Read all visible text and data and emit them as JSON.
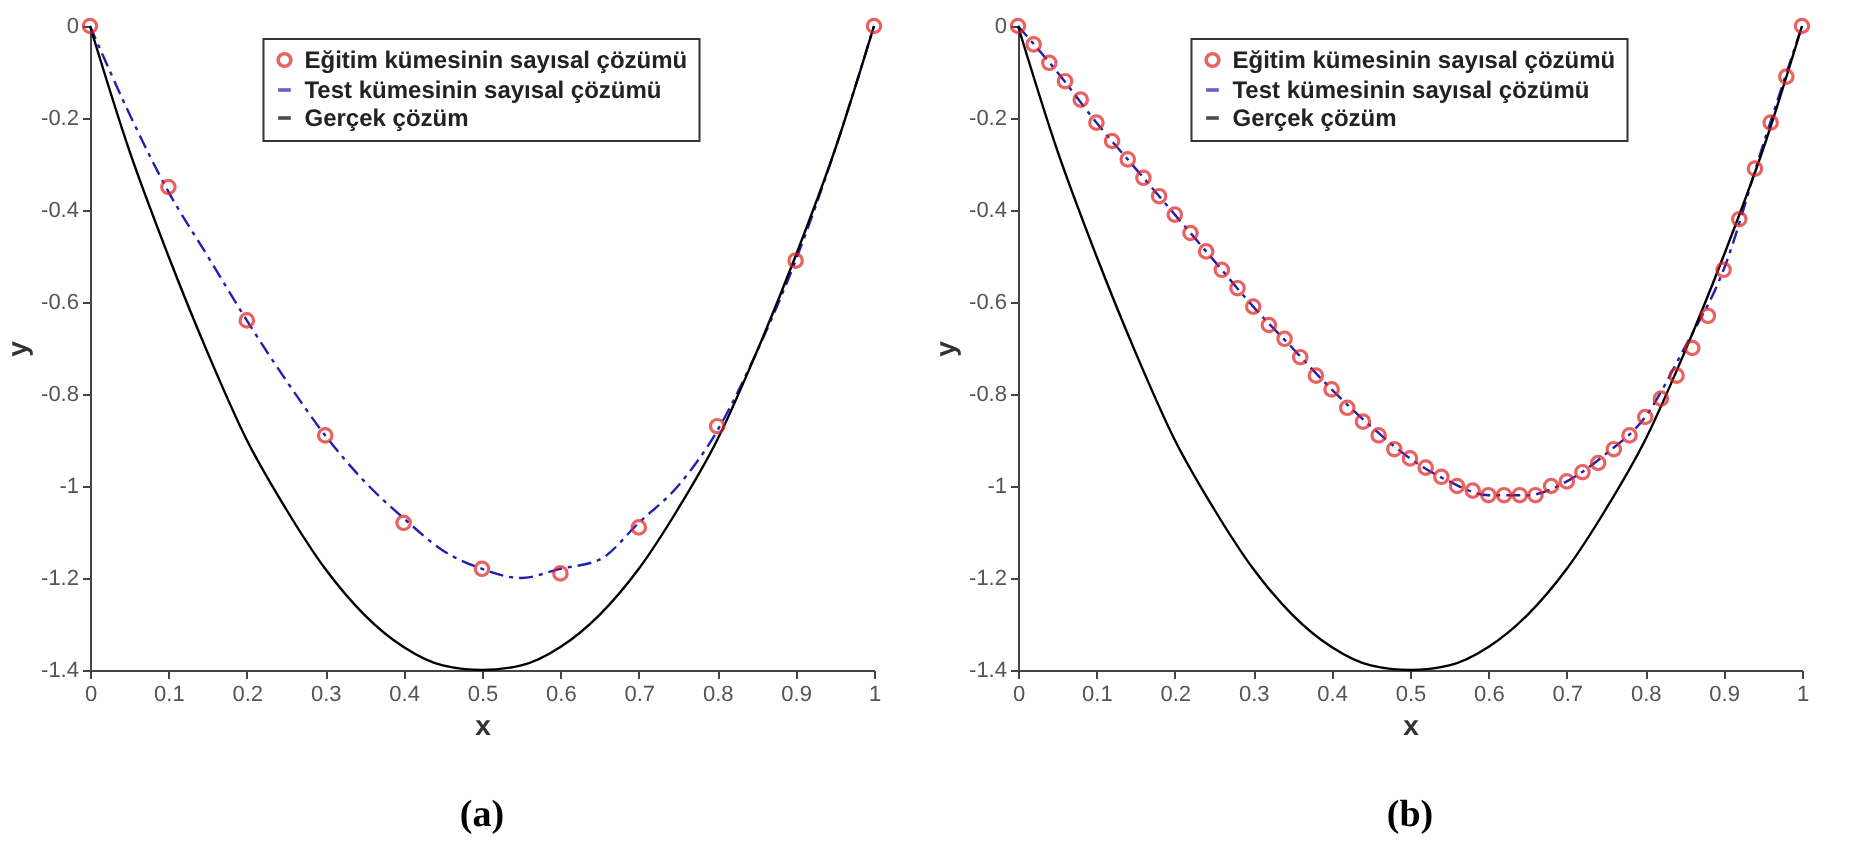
{
  "chart_data": [
    {
      "type": "line",
      "title": "(a)",
      "xlabel": "x",
      "ylabel": "y",
      "xlim": [
        0,
        1
      ],
      "ylim": [
        -1.4,
        0
      ],
      "xticks": [
        0,
        0.1,
        0.2,
        0.3,
        0.4,
        0.5,
        0.6,
        0.7,
        0.8,
        0.9,
        1
      ],
      "yticks": [
        -1.4,
        -1.2,
        -1,
        -0.8,
        -0.6,
        -0.4,
        -0.2,
        0
      ],
      "grid": false,
      "legend": "top",
      "series": [
        {
          "name": "Eğitim kümesinin sayısal çözümü",
          "type": "scatter",
          "marker": "circle",
          "color": "#e02020",
          "x": [
            0,
            0.1,
            0.2,
            0.3,
            0.4,
            0.5,
            0.6,
            0.7,
            0.8,
            0.9,
            1
          ],
          "values": [
            0,
            -0.35,
            -0.64,
            -0.89,
            -1.08,
            -1.18,
            -1.19,
            -1.09,
            -0.87,
            -0.51,
            0
          ]
        },
        {
          "name": "Test kümesinin sayısal çözümü",
          "type": "line",
          "line_style": "dashed",
          "color": "#2020b0",
          "x": [
            0,
            0.05,
            0.1,
            0.15,
            0.2,
            0.25,
            0.3,
            0.35,
            0.4,
            0.45,
            0.5,
            0.55,
            0.6,
            0.65,
            0.7,
            0.75,
            0.8,
            0.85,
            0.9,
            0.95,
            1
          ],
          "values": [
            0,
            -0.19,
            -0.36,
            -0.5,
            -0.64,
            -0.77,
            -0.89,
            -0.99,
            -1.07,
            -1.14,
            -1.18,
            -1.2,
            -1.18,
            -1.16,
            -1.08,
            -1.0,
            -0.88,
            -0.71,
            -0.51,
            -0.27,
            0
          ]
        },
        {
          "name": "Gerçek çözüm",
          "type": "line",
          "line_style": "solid",
          "color": "#000000",
          "x": [
            0,
            0.05,
            0.1,
            0.15,
            0.2,
            0.25,
            0.3,
            0.35,
            0.4,
            0.45,
            0.5,
            0.55,
            0.6,
            0.65,
            0.7,
            0.75,
            0.8,
            0.85,
            0.9,
            0.95,
            1
          ],
          "values": [
            0,
            -0.27,
            -0.5,
            -0.71,
            -0.9,
            -1.05,
            -1.18,
            -1.28,
            -1.35,
            -1.39,
            -1.4,
            -1.39,
            -1.35,
            -1.28,
            -1.18,
            -1.05,
            -0.9,
            -0.71,
            -0.5,
            -0.27,
            0
          ]
        }
      ]
    },
    {
      "type": "line",
      "title": "(b)",
      "xlabel": "x",
      "ylabel": "y",
      "xlim": [
        0,
        1
      ],
      "ylim": [
        -1.4,
        0
      ],
      "xticks": [
        0,
        0.1,
        0.2,
        0.3,
        0.4,
        0.5,
        0.6,
        0.7,
        0.8,
        0.9,
        1
      ],
      "yticks": [
        -1.4,
        -1.2,
        -1,
        -0.8,
        -0.6,
        -0.4,
        -0.2,
        0
      ],
      "grid": false,
      "legend": "top",
      "series": [
        {
          "name": "Eğitim kümesinin sayısal çözümü",
          "type": "scatter",
          "marker": "circle",
          "color": "#e02020",
          "x": [
            0,
            0.02,
            0.04,
            0.06,
            0.08,
            0.1,
            0.12,
            0.14,
            0.16,
            0.18,
            0.2,
            0.22,
            0.24,
            0.26,
            0.28,
            0.3,
            0.32,
            0.34,
            0.36,
            0.38,
            0.4,
            0.42,
            0.44,
            0.46,
            0.48,
            0.5,
            0.52,
            0.54,
            0.56,
            0.58,
            0.6,
            0.62,
            0.64,
            0.66,
            0.68,
            0.7,
            0.72,
            0.74,
            0.76,
            0.78,
            0.8,
            0.82,
            0.84,
            0.86,
            0.88,
            0.9,
            0.92,
            0.94,
            0.96,
            0.98,
            1
          ],
          "values": [
            0,
            -0.04,
            -0.08,
            -0.12,
            -0.16,
            -0.21,
            -0.25,
            -0.29,
            -0.33,
            -0.37,
            -0.41,
            -0.45,
            -0.49,
            -0.53,
            -0.57,
            -0.61,
            -0.65,
            -0.68,
            -0.72,
            -0.76,
            -0.79,
            -0.83,
            -0.86,
            -0.89,
            -0.92,
            -0.94,
            -0.96,
            -0.98,
            -1.0,
            -1.01,
            -1.02,
            -1.02,
            -1.02,
            -1.02,
            -1.0,
            -0.99,
            -0.97,
            -0.95,
            -0.92,
            -0.89,
            -0.85,
            -0.81,
            -0.76,
            -0.7,
            -0.63,
            -0.53,
            -0.42,
            -0.31,
            -0.21,
            -0.11,
            0
          ]
        },
        {
          "name": "Test kümesinin sayısal çözümü",
          "type": "line",
          "line_style": "dashed",
          "color": "#2020b0",
          "x": [
            0,
            0.05,
            0.1,
            0.15,
            0.2,
            0.25,
            0.3,
            0.35,
            0.4,
            0.45,
            0.5,
            0.55,
            0.6,
            0.65,
            0.7,
            0.75,
            0.8,
            0.85,
            0.9,
            0.95,
            1
          ],
          "values": [
            0,
            -0.1,
            -0.21,
            -0.31,
            -0.41,
            -0.51,
            -0.61,
            -0.7,
            -0.79,
            -0.87,
            -0.94,
            -0.99,
            -1.02,
            -1.02,
            -0.99,
            -0.93,
            -0.85,
            -0.7,
            -0.53,
            -0.26,
            0
          ]
        },
        {
          "name": "Gerçek çözüm",
          "type": "line",
          "line_style": "solid",
          "color": "#000000",
          "x": [
            0,
            0.05,
            0.1,
            0.15,
            0.2,
            0.25,
            0.3,
            0.35,
            0.4,
            0.45,
            0.5,
            0.55,
            0.6,
            0.65,
            0.7,
            0.75,
            0.8,
            0.85,
            0.9,
            0.95,
            1
          ],
          "values": [
            0,
            -0.27,
            -0.5,
            -0.71,
            -0.9,
            -1.05,
            -1.18,
            -1.28,
            -1.35,
            -1.39,
            -1.4,
            -1.39,
            -1.35,
            -1.28,
            -1.18,
            -1.05,
            -0.9,
            -0.71,
            -0.5,
            -0.27,
            0
          ]
        }
      ]
    }
  ]
}
